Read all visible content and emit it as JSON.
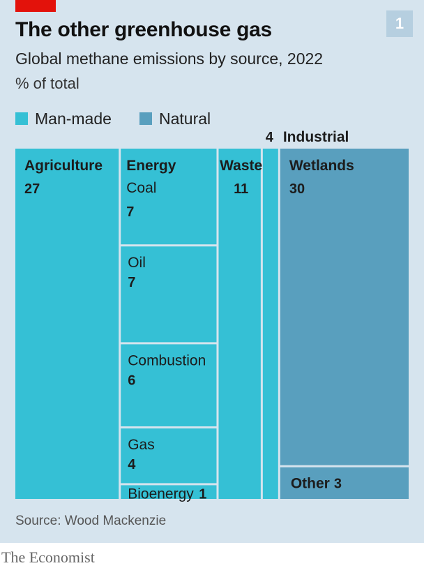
{
  "header": {
    "title": "The other greenhouse gas",
    "subtitle": "Global methane emissions by source, 2022",
    "unit": "% of total",
    "chart_number": "1"
  },
  "legend": [
    {
      "label": "Man-made",
      "color": "#35c0d5"
    },
    {
      "label": "Natural",
      "color": "#599fbe"
    }
  ],
  "footer": {
    "source": "Source: Wood Mackenzie",
    "brand": "The Economist"
  },
  "chart_data": {
    "type": "treemap",
    "title": "The other greenhouse gas",
    "subtitle": "Global methane emissions by source, 2022",
    "unit": "% of total",
    "groups": [
      {
        "category": "Man-made",
        "name": "Agriculture",
        "value": 27,
        "color": "#35c0d5"
      },
      {
        "category": "Man-made",
        "name": "Energy",
        "color": "#35c0d5",
        "children": [
          {
            "name": "Coal",
            "value": 7
          },
          {
            "name": "Oil",
            "value": 7
          },
          {
            "name": "Combustion",
            "value": 6
          },
          {
            "name": "Gas",
            "value": 4
          },
          {
            "name": "Bioenergy",
            "value": 1
          }
        ]
      },
      {
        "category": "Man-made",
        "name": "Waste",
        "value": 11,
        "color": "#35c0d5"
      },
      {
        "category": "Man-made",
        "name": "Industrial",
        "value": 4,
        "color": "#35c0d5"
      },
      {
        "category": "Natural",
        "name": "Wetlands",
        "value": 30,
        "color": "#599fbe"
      },
      {
        "category": "Natural",
        "name": "Other",
        "value": 3,
        "color": "#599fbe"
      }
    ]
  }
}
